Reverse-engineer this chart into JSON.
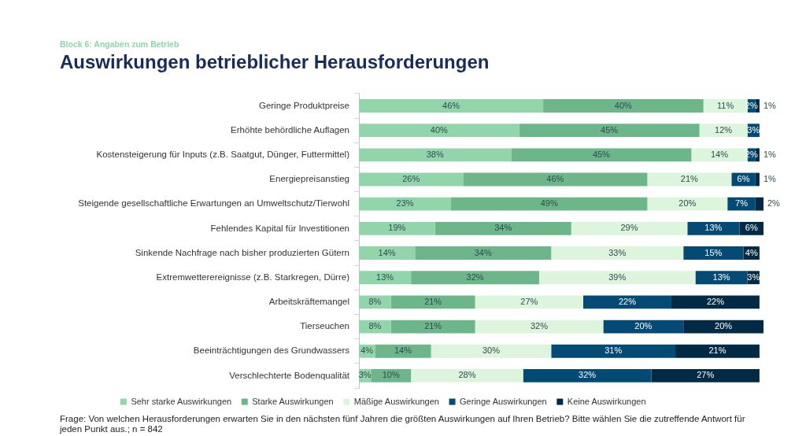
{
  "chart_data": {
    "type": "bar",
    "orientation": "horizontal",
    "stacked": true,
    "subtitle": "Block 6: Angaben zum Betrieb",
    "title": "Auswirkungen betrieblicher Herausforderungen",
    "categories": [
      "Geringe Produktpreise",
      "Erhöhte behördliche Auflagen",
      "Kostensteigerung für Inputs (z.B. Saatgut, Dünger, Futtermittel)",
      "Energiepreisanstieg",
      "Steigende gesellschaftliche Erwartungen an Umweltschutz/Tierwohl",
      "Fehlendes Kapital für Investitionen",
      "Sinkende Nachfrage nach bisher produzierten Gütern",
      "Extremwetterereignisse (z.B. Starkregen, Dürre)",
      "Arbeitskräftemangel",
      "Tierseuchen",
      "Beeinträchtigungen des Grundwassers",
      "Verschlechterte Bodenqualität"
    ],
    "series": [
      {
        "name": "Sehr starke Auswirkungen",
        "color": "#93d5aa",
        "values": [
          46,
          40,
          38,
          26,
          23,
          19,
          14,
          13,
          8,
          8,
          4,
          3
        ],
        "value_labels": [
          "46%",
          "40%",
          "38%",
          "26%",
          "23%",
          "19%",
          "14%",
          "13%",
          "8%",
          "8%",
          "4%",
          "3%"
        ]
      },
      {
        "name": "Starke Auswirkungen",
        "color": "#6cb68a",
        "values": [
          40,
          45,
          45,
          46,
          49,
          34,
          34,
          32,
          21,
          21,
          14,
          10
        ],
        "value_labels": [
          "40%",
          "45%",
          "45%",
          "46%",
          "49%",
          "34%",
          "34%",
          "32%",
          "21%",
          "21%",
          "14%",
          "10%"
        ]
      },
      {
        "name": "Mäßige Auswirkungen",
        "color": "#ddf5dd",
        "values": [
          11,
          12,
          14,
          21,
          20,
          29,
          33,
          39,
          27,
          32,
          30,
          28
        ],
        "value_labels": [
          "11%",
          "12%",
          "14%",
          "21%",
          "20%",
          "29%",
          "33%",
          "39%",
          "27%",
          "32%",
          "30%",
          "28%"
        ]
      },
      {
        "name": "Geringe Auswirkungen",
        "color": "#034a74",
        "values": [
          2,
          3,
          2,
          6,
          7,
          13,
          15,
          13,
          22,
          20,
          31,
          32
        ],
        "value_labels": [
          "2%",
          "3%",
          "2%",
          "6%",
          "7%",
          "13%",
          "15%",
          "13%",
          "22%",
          "20%",
          "31%",
          "32%"
        ]
      },
      {
        "name": "Keine Auswirkungen",
        "color": "#032a45",
        "values": [
          1,
          null,
          1,
          1,
          2,
          6,
          4,
          3,
          22,
          20,
          21,
          27
        ],
        "value_labels": [
          "1%",
          null,
          "1%",
          "1%",
          "2%",
          "6%",
          "4%",
          "3%",
          "22%",
          "20%",
          "21%",
          "27%"
        ]
      }
    ],
    "xlim": [
      0,
      101
    ],
    "tick_labels": "y",
    "legend": "bottom",
    "annotations": [
      "Frage: Von welchen Herausforderungen erwarten Sie in den nächsten fünf Jahren die größten Auswirkungen auf Ihren Betrieb? Bitte wählen Sie die zutreffende Antwort für jeden Punkt aus.; n = 842"
    ]
  }
}
